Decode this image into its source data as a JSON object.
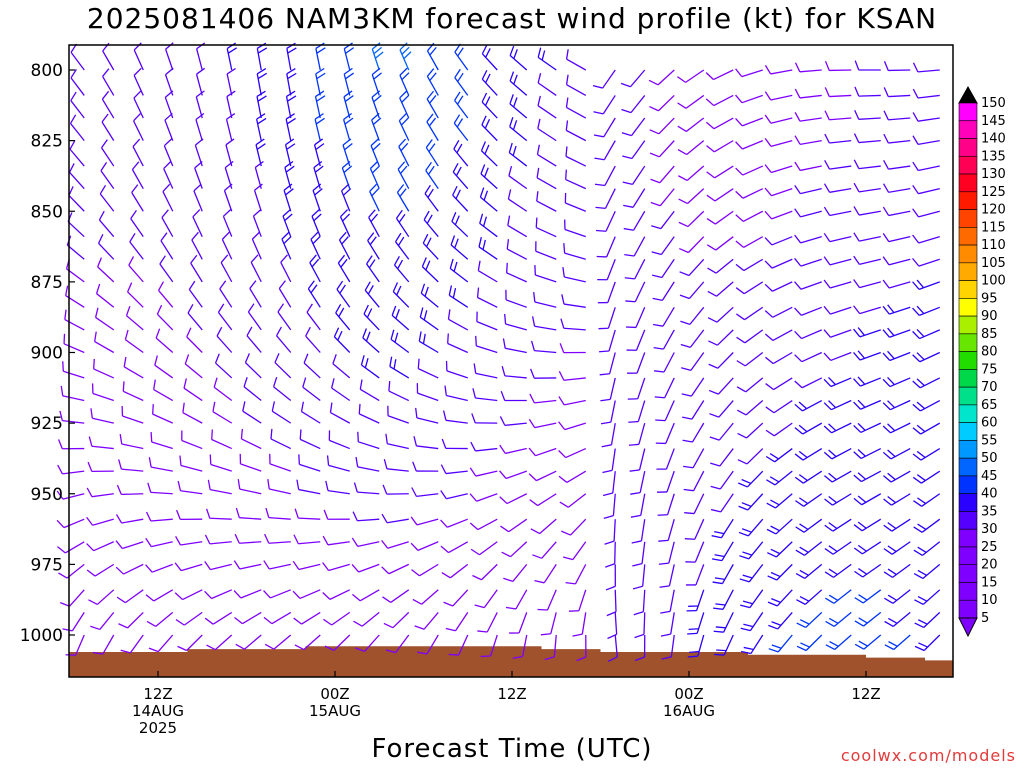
{
  "title": "2025081406 NAM3KM forecast wind profile (kt) for KSAN",
  "xlabel": "Forecast Time (UTC)",
  "credit": "coolwx.com/models",
  "colors": {
    "terrain": "#a0522d",
    "frame": "#000000",
    "colorbar": [
      "#7f00ff",
      "#5500ff",
      "#2a00ff",
      "#0033ff",
      "#0066ff",
      "#0099ff",
      "#00ccff",
      "#00e5cc",
      "#00e08a",
      "#00d84a",
      "#22dd00",
      "#66e600",
      "#aaee00",
      "#ffff00",
      "#ffd400",
      "#ffaa00",
      "#ff8c00",
      "#ff6a00",
      "#ff4400",
      "#ff1a00",
      "#ff0022",
      "#ff0055",
      "#ff0088",
      "#ff00bb",
      "#ff00ff"
    ]
  },
  "chart_data": {
    "type": "wind-barb-time-height",
    "y_ticks": [
      800,
      825,
      850,
      875,
      900,
      925,
      950,
      975,
      1000
    ],
    "ylim": [
      1015,
      792
    ],
    "x_ticks": [
      {
        "hour": 6,
        "lines": [
          "12Z",
          "14AUG",
          "2025"
        ]
      },
      {
        "hour": 18,
        "lines": [
          "00Z",
          "15AUG"
        ]
      },
      {
        "hour": 30,
        "lines": [
          "12Z"
        ]
      },
      {
        "hour": 42,
        "lines": [
          "00Z",
          "16AUG"
        ]
      },
      {
        "hour": 54,
        "lines": [
          "12Z"
        ]
      }
    ],
    "xlim": [
      0,
      60
    ],
    "colorbar_labels": [
      "150",
      "145",
      "140",
      "135",
      "130",
      "125",
      "120",
      "115",
      "110",
      "105",
      "100",
      "95",
      "90",
      "85",
      "80",
      "75",
      "70",
      "65",
      "60",
      "55",
      "50",
      "45",
      "40",
      "35",
      "30",
      "25",
      "20",
      "15",
      "10",
      "5"
    ],
    "colorbar_speeds": [
      150,
      145,
      140,
      135,
      130,
      125,
      120,
      115,
      110,
      105,
      100,
      95,
      90,
      85,
      80,
      75,
      70,
      65,
      60,
      55,
      50,
      45,
      40,
      35,
      30,
      25,
      20,
      15,
      10,
      5
    ],
    "levels": [
      800,
      809,
      817,
      825,
      834,
      842,
      850,
      859,
      867,
      875,
      884,
      892,
      900,
      909,
      917,
      925,
      934,
      942,
      950,
      959,
      967,
      975,
      984,
      992,
      1000
    ],
    "hours": [
      1,
      3,
      5,
      7,
      9,
      11,
      13,
      15,
      17,
      19,
      21,
      23,
      25,
      27,
      29,
      31,
      33,
      35,
      37,
      39,
      41,
      43,
      45,
      47,
      49,
      51,
      53,
      55,
      57,
      59
    ],
    "surface_pressure": [
      1006,
      1006,
      1006,
      1006,
      1005,
      1005,
      1005,
      1005,
      1004,
      1004,
      1004,
      1004,
      1004,
      1004,
      1004,
      1004,
      1005,
      1005,
      1006,
      1006,
      1006,
      1006,
      1006,
      1007,
      1007,
      1007,
      1007,
      1008,
      1008,
      1009
    ]
  }
}
